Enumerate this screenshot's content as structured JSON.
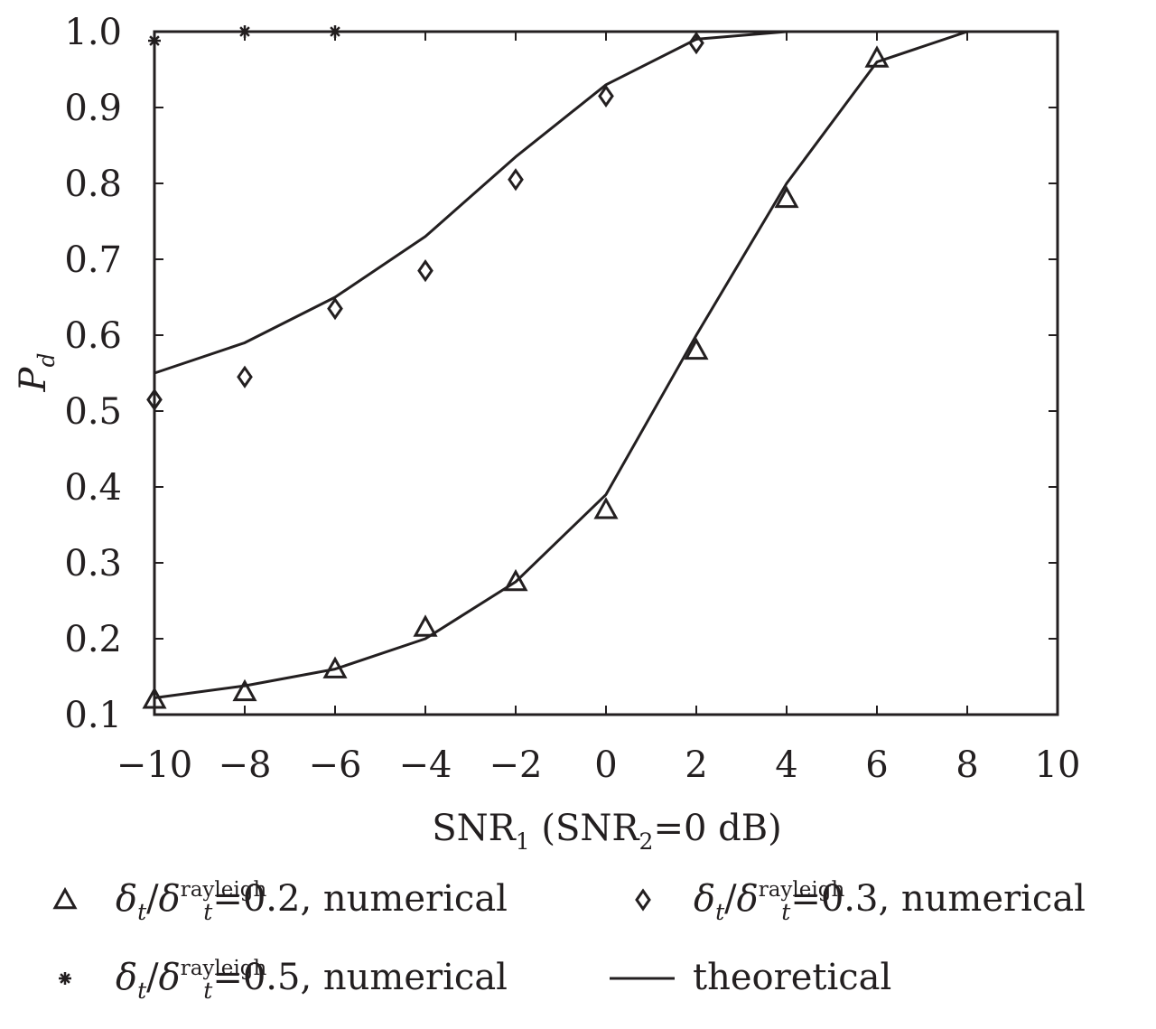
{
  "chart_data": {
    "type": "line",
    "xlabel": {
      "main": "SNR",
      "sub": "1",
      "rest_before": " (SNR",
      "rest_sub": "2",
      "rest_after": "=0 dB)"
    },
    "ylabel": {
      "main": "P",
      "sub": "d"
    },
    "xlim": [
      -10,
      10
    ],
    "ylim": [
      0.1,
      1.0
    ],
    "xticks": [
      -10,
      -8,
      -6,
      -4,
      -2,
      0,
      2,
      4,
      6,
      8,
      10
    ],
    "xtick_labels": [
      "−10",
      "−8",
      "−6",
      "−4",
      "−2",
      "0",
      "2",
      "4",
      "6",
      "8",
      "10"
    ],
    "yticks": [
      0.1,
      0.2,
      0.3,
      0.4,
      0.5,
      0.6,
      0.7,
      0.8,
      0.9,
      1.0
    ],
    "ytick_labels": [
      "0.1",
      "0.2",
      "0.3",
      "0.4",
      "0.5",
      "0.6",
      "0.7",
      "0.8",
      "0.9",
      "1.0"
    ],
    "grid": false,
    "legend_position": "below",
    "series": [
      {
        "name": "δt/δt rayleigh=0.2, numerical",
        "kind": "markers",
        "marker": "triangle",
        "x": [
          -10,
          -8,
          -6,
          -4,
          -2,
          0,
          2,
          4,
          6
        ],
        "y": [
          0.12,
          0.13,
          0.16,
          0.215,
          0.275,
          0.37,
          0.58,
          0.78,
          0.965
        ]
      },
      {
        "name": "δt/δt rayleigh=0.3, numerical",
        "kind": "markers",
        "marker": "diamond",
        "x": [
          -10,
          -8,
          -6,
          -4,
          -2,
          0,
          2
        ],
        "y": [
          0.515,
          0.545,
          0.635,
          0.685,
          0.805,
          0.915,
          0.985
        ]
      },
      {
        "name": "δt/δt rayleigh=0.5, numerical",
        "kind": "markers",
        "marker": "star",
        "x": [
          -10,
          -8,
          -6
        ],
        "y": [
          0.988,
          1.0,
          1.0
        ]
      },
      {
        "name": "theoretical",
        "kind": "line",
        "marker": "none",
        "curves": [
          {
            "x": [
              -10,
              -8,
              -6,
              -4,
              -2,
              0,
              2,
              4,
              6,
              8,
              10
            ],
            "y": [
              0.122,
              0.138,
              0.16,
              0.2,
              0.275,
              0.39,
              0.6,
              0.8,
              0.96,
              1.0,
              1.0
            ]
          },
          {
            "x": [
              -10,
              -8,
              -6,
              -4,
              -2,
              0,
              2,
              4,
              6,
              8,
              10
            ],
            "y": [
              0.55,
              0.59,
              0.65,
              0.73,
              0.835,
              0.93,
              0.99,
              1.0,
              1.0,
              1.0,
              1.0
            ]
          },
          {
            "x": [
              -10,
              -8,
              -6,
              -4,
              -2,
              0,
              2,
              4,
              6,
              8,
              10
            ],
            "y": [
              1.0,
              1.0,
              1.0,
              1.0,
              1.0,
              1.0,
              1.0,
              1.0,
              1.0,
              1.0,
              1.0
            ]
          }
        ]
      }
    ],
    "legend": [
      {
        "marker": "triangle",
        "sym": "δ",
        "sub1": "t",
        "slash": "/",
        "sym2": "δ",
        "sub2": "t",
        "sup2": "rayleigh",
        "tail": "=0.2, numerical"
      },
      {
        "marker": "diamond",
        "sym": "δ",
        "sub1": "t",
        "slash": "/",
        "sym2": "δ",
        "sub2": "t",
        "sup2": "rayleigh",
        "tail": "=0.3, numerical"
      },
      {
        "marker": "star",
        "sym": "δ",
        "sub1": "t",
        "slash": "/",
        "sym2": "δ",
        "sub2": "t",
        "sup2": "rayleigh",
        "tail": "=0.5, numerical"
      },
      {
        "marker": "line",
        "tail": "theoretical"
      }
    ],
    "colors": {
      "ink": "#231f20",
      "background": "#ffffff"
    }
  }
}
